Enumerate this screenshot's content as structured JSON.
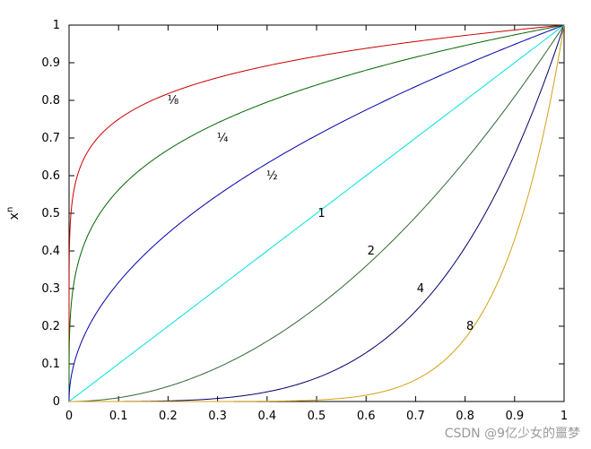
{
  "chart_data": {
    "type": "line",
    "title": "",
    "xlabel": "",
    "ylabel": "x",
    "ylabel_superscript": "n",
    "xlim": [
      0,
      1
    ],
    "ylim": [
      0,
      1
    ],
    "grid": false,
    "x_ticks": [
      0,
      0.1,
      0.2,
      0.3,
      0.4,
      0.5,
      0.6,
      0.7,
      0.8,
      0.9,
      1
    ],
    "x_tick_labels": [
      "0",
      "0.1",
      "0.2",
      "0.3",
      "0.4",
      "0.5",
      "0.6",
      "0.7",
      "0.8",
      "0.9",
      "1"
    ],
    "y_ticks": [
      0,
      0.1,
      0.2,
      0.3,
      0.4,
      0.5,
      0.6,
      0.7,
      0.8,
      0.9,
      1
    ],
    "y_tick_labels": [
      "0",
      "0.1",
      "0.2",
      "0.3",
      "0.4",
      "0.5",
      "0.6",
      "0.7",
      "0.8",
      "0.9",
      "1"
    ],
    "series": [
      {
        "exponent": 0.125,
        "label": "⅛",
        "color": "#cc0000",
        "label_at": [
          0.21,
          0.8
        ]
      },
      {
        "exponent": 0.25,
        "label": "¼",
        "color": "#006600",
        "label_at": [
          0.31,
          0.7
        ]
      },
      {
        "exponent": 0.5,
        "label": "½",
        "color": "#0000aa",
        "label_at": [
          0.41,
          0.6
        ]
      },
      {
        "exponent": 1,
        "label": "1",
        "color": "#00e0e0",
        "label_at": [
          0.51,
          0.5
        ]
      },
      {
        "exponent": 2,
        "label": "2",
        "color": "#336633",
        "label_at": [
          0.61,
          0.4
        ]
      },
      {
        "exponent": 4,
        "label": "4",
        "color": "#000066",
        "label_at": [
          0.71,
          0.3
        ]
      },
      {
        "exponent": 8,
        "label": "8",
        "color": "#d4a017",
        "label_at": [
          0.81,
          0.2
        ]
      }
    ]
  },
  "watermark": "CSDN @9亿少女的噩梦"
}
